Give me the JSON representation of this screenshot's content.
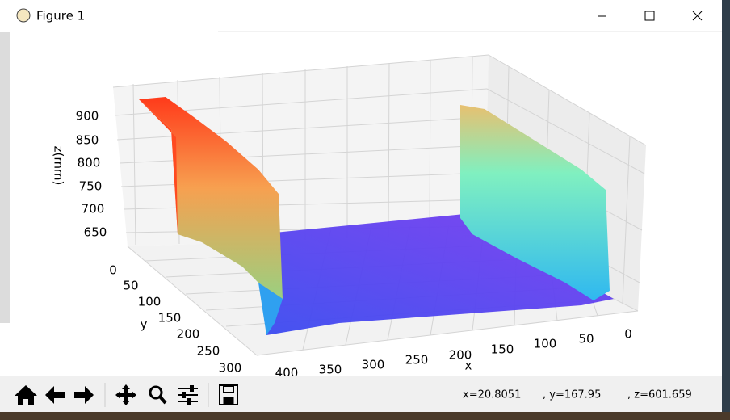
{
  "window": {
    "title": "Figure 1"
  },
  "plot": {
    "z_axis": {
      "label": "z(mm)",
      "ticks": [
        900,
        850,
        800,
        750,
        700,
        650
      ]
    },
    "y_axis": {
      "label": "y",
      "ticks": [
        0,
        50,
        100,
        150,
        200,
        250,
        300
      ]
    },
    "x_axis": {
      "label": "x",
      "ticks": [
        400,
        350,
        300,
        250,
        200,
        150,
        100,
        50,
        0
      ]
    }
  },
  "status": {
    "x": "x=20.8051",
    "y": ", y=167.95",
    "z": ", z=601.659"
  }
}
